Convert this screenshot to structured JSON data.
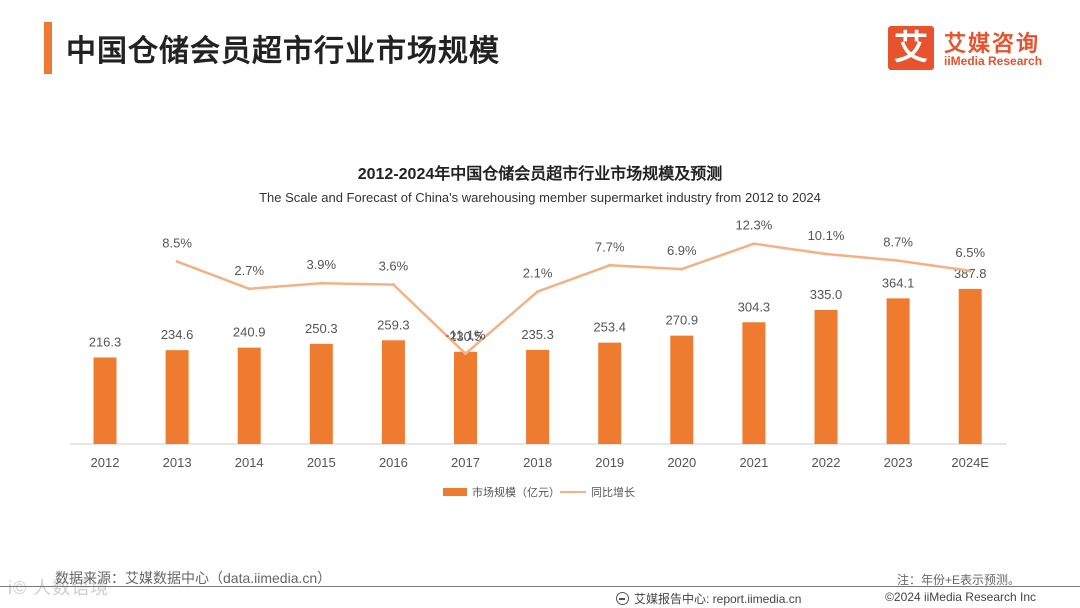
{
  "header": {
    "title": "中国仓储会员超市行业市场规模",
    "logo_mark": "艾",
    "logo_cn": "艾媒咨询",
    "logo_en": "iiMedia Research"
  },
  "colors": {
    "bar": "#ee7b2f",
    "line": "#f4b183",
    "accent": "#e8522d",
    "axis": "#cccccc"
  },
  "chart_data": {
    "type": "bar",
    "title": "2012-2024年中国仓储会员超市行业市场规模及预测",
    "subtitle": "The Scale and Forecast of China's warehousing member supermarket industry from 2012 to 2024",
    "categories": [
      "2012",
      "2013",
      "2014",
      "2015",
      "2016",
      "2017",
      "2018",
      "2019",
      "2020",
      "2021",
      "2022",
      "2023",
      "2024E"
    ],
    "series": [
      {
        "name": "市场规模（亿元）",
        "type": "bar",
        "values": [
          216.3,
          234.6,
          240.9,
          250.3,
          259.3,
          230.5,
          235.3,
          253.4,
          270.9,
          304.3,
          335.0,
          364.1,
          387.8
        ]
      },
      {
        "name": "同比增长",
        "type": "line",
        "values": [
          null,
          8.5,
          2.7,
          3.9,
          3.6,
          -11.1,
          2.1,
          7.7,
          6.9,
          12.3,
          10.1,
          8.7,
          6.5
        ],
        "unit": "%"
      }
    ],
    "bar_labels": [
      "216.3",
      "234.6",
      "240.9",
      "250.3",
      "259.3",
      "230.5",
      "235.3",
      "253.4",
      "270.9",
      "304.3",
      "335.0",
      "364.1",
      "387.8"
    ],
    "line_labels": [
      "",
      "8.5%",
      "2.7%",
      "3.9%",
      "3.6%",
      "-11.1%",
      "2.1%",
      "7.7%",
      "6.9%",
      "12.3%",
      "10.1%",
      "8.7%",
      "6.5%"
    ],
    "legend": [
      "市场规模（亿元）",
      "同比增长"
    ],
    "legend_position": "bottom-center",
    "grid": false
  },
  "footer": {
    "source": "数据来源：艾媒数据中心（data.iimedia.cn）",
    "note": "注：年份+E表示预测。",
    "report_center": "艾媒报告中心: report.iimedia.cn",
    "copyright": "©2024  iiMedia Research  Inc",
    "watermark": "i©  人数语境"
  }
}
